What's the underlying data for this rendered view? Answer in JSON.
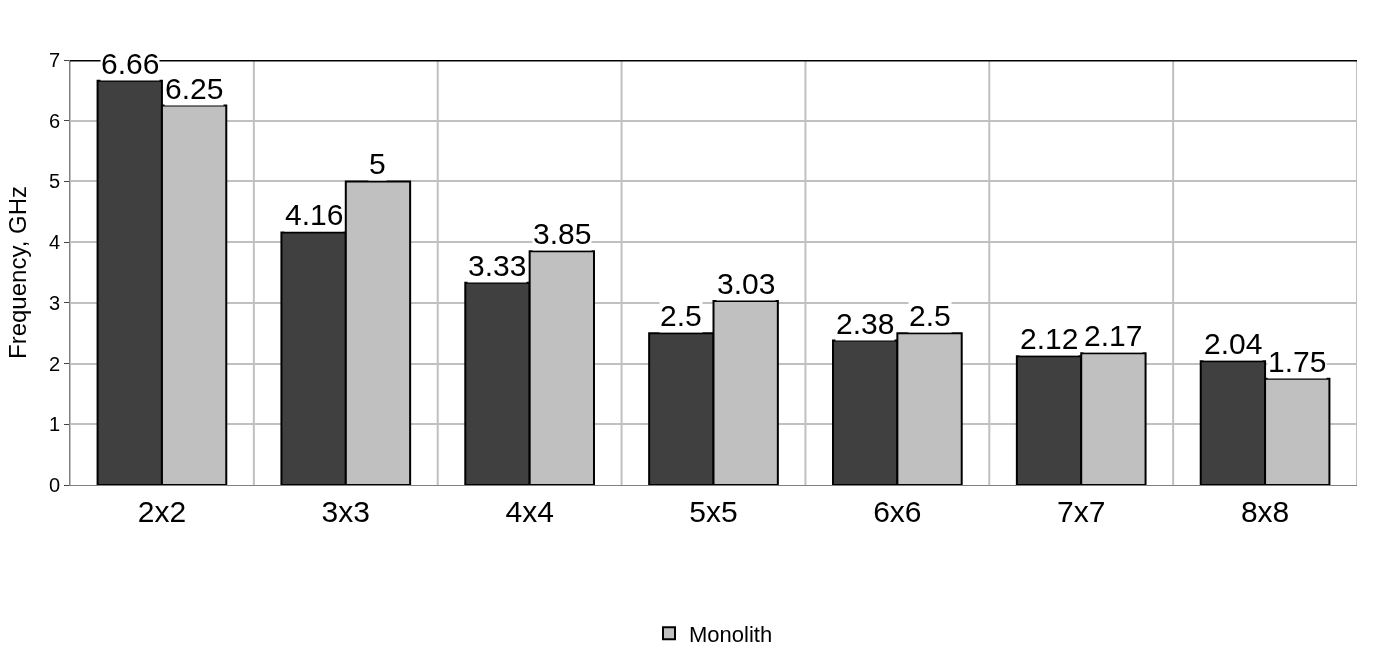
{
  "chart_data": {
    "type": "bar",
    "ylabel": "Frequency, GHz",
    "categories": [
      "2x2",
      "3x3",
      "4x4",
      "5x5",
      "6x6",
      "7x7",
      "8x8"
    ],
    "series": [
      {
        "color": "#404040",
        "values": [
          6.66,
          4.16,
          3.33,
          2.5,
          2.38,
          2.12,
          2.04
        ]
      },
      {
        "name": "Monolith",
        "color": "#c0c0c0",
        "values": [
          6.25,
          5,
          3.85,
          3.03,
          2.5,
          2.17,
          1.75
        ]
      }
    ],
    "ylim": [
      0,
      7
    ],
    "yticks": [
      0,
      1,
      2,
      3,
      4,
      5,
      6,
      7
    ],
    "grid": true,
    "legend": "bottom",
    "data_labels": true
  }
}
